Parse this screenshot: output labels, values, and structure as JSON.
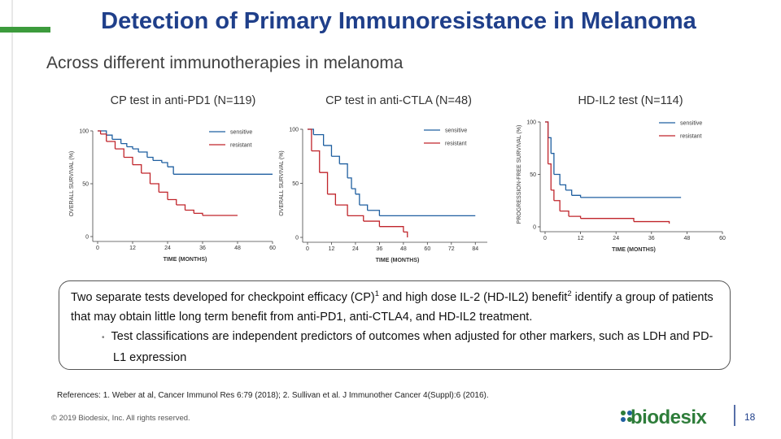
{
  "header": {
    "title": "Detection of Primary Immunoresistance in Melanoma",
    "subtitle": "Across different immunotherapies in melanoma"
  },
  "chart_data": [
    {
      "type": "step",
      "caption": "CP test in anti-PD1 (N=119)",
      "xlabel": "TIME (MONTHS)",
      "ylabel": "OVERALL SURVIVAL (%)",
      "xlim": [
        0,
        60
      ],
      "xticks": [
        0,
        12,
        24,
        36,
        48,
        60
      ],
      "ylim": [
        0,
        100
      ],
      "yticks": [
        0,
        50,
        100
      ],
      "series": [
        {
          "name": "sensitive",
          "color": "#1f5fa0",
          "x": [
            0,
            3,
            5,
            8,
            10,
            12,
            14,
            17,
            19,
            22,
            24,
            26,
            60
          ],
          "y": [
            100,
            96,
            92,
            88,
            85,
            83,
            80,
            75,
            72,
            70,
            66,
            59,
            59
          ]
        },
        {
          "name": "resistant",
          "color": "#c0252b",
          "x": [
            0,
            1,
            3,
            6,
            9,
            12,
            15,
            18,
            21,
            24,
            27,
            30,
            33,
            36,
            48
          ],
          "y": [
            100,
            97,
            90,
            83,
            75,
            68,
            60,
            50,
            42,
            35,
            30,
            25,
            22,
            20,
            20
          ]
        }
      ]
    },
    {
      "type": "step",
      "caption": "CP test in anti-CTLA (N=48)",
      "xlabel": "TIME (MONTHS)",
      "ylabel": "OVERALL SURVIVAL (%)",
      "xlim": [
        0,
        90
      ],
      "xticks": [
        0,
        12,
        24,
        36,
        48,
        60,
        72,
        84
      ],
      "ylim": [
        0,
        100
      ],
      "yticks": [
        0,
        50,
        100
      ],
      "series": [
        {
          "name": "sensitive",
          "color": "#1f5fa0",
          "x": [
            0,
            3,
            8,
            12,
            16,
            20,
            22,
            24,
            26,
            30,
            36,
            84
          ],
          "y": [
            100,
            95,
            85,
            75,
            68,
            55,
            45,
            40,
            30,
            25,
            20,
            20
          ]
        },
        {
          "name": "resistant",
          "color": "#c0252b",
          "x": [
            0,
            2,
            6,
            10,
            14,
            20,
            28,
            36,
            48,
            50
          ],
          "y": [
            100,
            80,
            60,
            40,
            30,
            20,
            15,
            10,
            5,
            0
          ]
        }
      ]
    },
    {
      "type": "step",
      "caption": "HD-IL2 test (N=114)",
      "xlabel": "TIME (MONTHS)",
      "ylabel": "PROGRESSION-FREE SURVIVAL (%)",
      "xlim": [
        0,
        60
      ],
      "xticks": [
        0,
        12,
        24,
        36,
        48,
        60
      ],
      "ylim": [
        0,
        100
      ],
      "yticks": [
        0,
        50,
        100
      ],
      "series": [
        {
          "name": "sensitive",
          "color": "#1f5fa0",
          "x": [
            0,
            1,
            2,
            3,
            5,
            7,
            9,
            12,
            46
          ],
          "y": [
            100,
            85,
            70,
            50,
            40,
            35,
            30,
            28,
            28
          ]
        },
        {
          "name": "resistant",
          "color": "#c0252b",
          "x": [
            0,
            1,
            2,
            3,
            5,
            8,
            12,
            30,
            42
          ],
          "y": [
            100,
            60,
            35,
            25,
            15,
            10,
            8,
            5,
            3
          ]
        }
      ]
    }
  ],
  "callout": {
    "parts": [
      "Two separate tests developed for checkpoint efficacy (CP)",
      "1",
      " and high dose IL-2 (HD-IL2) benefit",
      "2",
      " identify a group of patients that may obtain little long term benefit from anti-PD1, anti-CTLA4, and HD-IL2 treatment."
    ],
    "bullet": "Test classifications are independent predictors of outcomes when adjusted for other markers, such as LDH and PD-L1 expression"
  },
  "references": "References: 1. Weber at al, Cancer Immunol Res 6:79 (2018); 2. Sullivan et al. J Immunother Cancer 4(Suppl):6 (2016).",
  "footer": {
    "copyright": "© 2019 Biodesix, Inc. All rights reserved.",
    "logo": "biodesix",
    "page": "18"
  }
}
